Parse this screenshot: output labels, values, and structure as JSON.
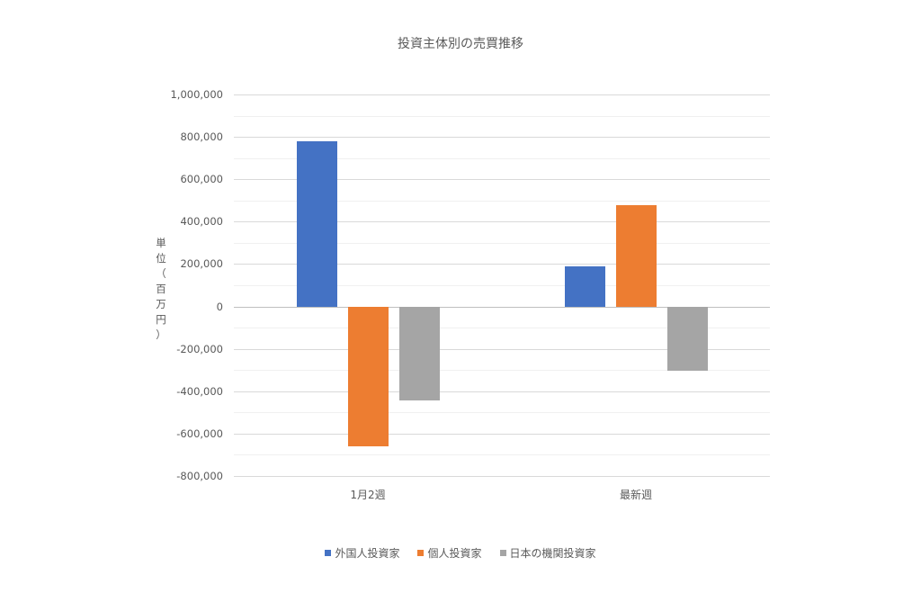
{
  "chart_data": {
    "type": "bar",
    "title": "投資主体別の売買推移",
    "xlabel": "",
    "ylabel": "単位（百万円）",
    "categories": [
      "1月2週",
      "最新週"
    ],
    "series": [
      {
        "name": "外国人投資家",
        "color": "#4472C4",
        "values": [
          779000,
          190000
        ]
      },
      {
        "name": "個人投資家",
        "color": "#ED7D31",
        "values": [
          -660000,
          476000
        ]
      },
      {
        "name": "日本の機関投資家",
        "color": "#A5A5A5",
        "values": [
          -444000,
          -305000
        ]
      }
    ],
    "ylim": [
      -800000,
      1000000
    ],
    "yticks": [
      1000000,
      800000,
      600000,
      400000,
      200000,
      0,
      -200000,
      -400000,
      -600000,
      -800000
    ],
    "ytick_labels": [
      "1,000,000",
      "800,000",
      "600,000",
      "400,000",
      "200,000",
      "0",
      "-200,000",
      "-400,000",
      "-600,000",
      "-800,000"
    ],
    "minor_step": 100000,
    "grid": true,
    "legend_position": "bottom"
  },
  "ylabel_chars": [
    "単",
    "位",
    "（",
    "百",
    "万",
    "円",
    "）"
  ]
}
